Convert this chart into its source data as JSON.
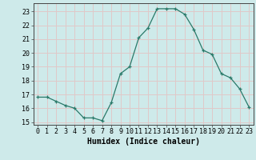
{
  "x": [
    0,
    1,
    2,
    3,
    4,
    5,
    6,
    7,
    8,
    9,
    10,
    11,
    12,
    13,
    14,
    15,
    16,
    17,
    18,
    19,
    20,
    21,
    22,
    23
  ],
  "y": [
    16.8,
    16.8,
    16.5,
    16.2,
    16.0,
    15.3,
    15.3,
    15.1,
    16.4,
    18.5,
    19.0,
    21.1,
    21.8,
    23.2,
    23.2,
    23.2,
    22.8,
    21.7,
    20.2,
    19.9,
    18.5,
    18.2,
    17.4,
    16.1
  ],
  "xlabel": "Humidex (Indice chaleur)",
  "line_color": "#2a7a6a",
  "marker": "+",
  "bg_color": "#ceeaea",
  "grid_color": "#e0c8c8",
  "ylim": [
    14.8,
    23.6
  ],
  "xlim": [
    -0.5,
    23.5
  ],
  "yticks": [
    15,
    16,
    17,
    18,
    19,
    20,
    21,
    22,
    23
  ],
  "xticks": [
    0,
    1,
    2,
    3,
    4,
    5,
    6,
    7,
    8,
    9,
    10,
    11,
    12,
    13,
    14,
    15,
    16,
    17,
    18,
    19,
    20,
    21,
    22,
    23
  ],
  "tick_fontsize": 6,
  "xlabel_fontsize": 7
}
